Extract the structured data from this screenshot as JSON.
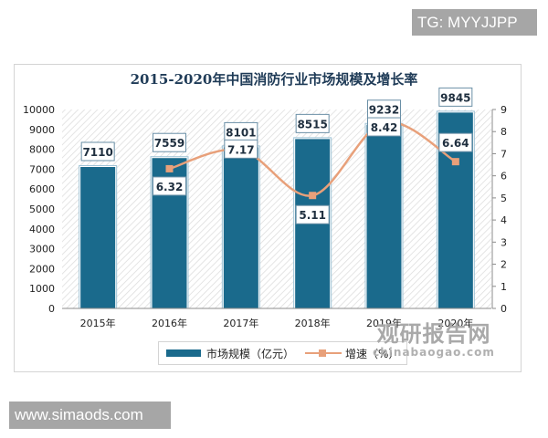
{
  "overlays": {
    "top_tag": "TG: MYYJJPP",
    "bottom_tag": "www.simaods.com"
  },
  "watermark": {
    "cn": "观研报告网",
    "en": "chinabaogao.com"
  },
  "legend": {
    "bar_label": "市场规模（亿元）",
    "line_label": "增速（%）"
  },
  "colors": {
    "bar": "#1a6a8c",
    "line": "#e8a07a",
    "title": "#1f3b57"
  },
  "chart_data": {
    "type": "bar",
    "title": "2015-2020年中国消防行业市场规模及增长率",
    "xlabel": "",
    "ylabel": "市场规模（亿元）",
    "y2label": "增速（%）",
    "categories": [
      "2015年",
      "2016年",
      "2017年",
      "2018年",
      "2019年",
      "2020年"
    ],
    "series": [
      {
        "name": "市场规模（亿元）",
        "type": "bar",
        "axis": "left",
        "values": [
          7110,
          7559,
          8101,
          8515,
          9232,
          9845
        ]
      },
      {
        "name": "增速（%）",
        "type": "line",
        "axis": "right",
        "values": [
          null,
          6.32,
          7.17,
          5.11,
          8.42,
          6.64
        ]
      }
    ],
    "ylim": [
      0,
      10000
    ],
    "y_ticks": [
      0,
      1000,
      2000,
      3000,
      4000,
      5000,
      6000,
      7000,
      8000,
      9000,
      10000
    ],
    "y2lim": [
      0,
      9
    ],
    "y2_ticks": [
      0,
      1,
      2,
      3,
      4,
      5,
      6,
      7,
      8,
      9
    ],
    "grid": false,
    "legend_position": "bottom"
  }
}
